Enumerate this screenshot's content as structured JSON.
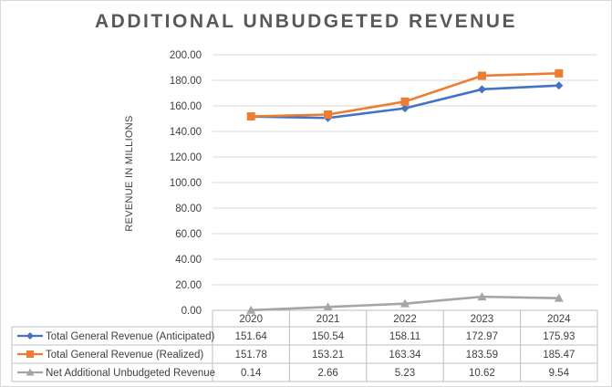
{
  "chart_data": {
    "type": "line",
    "title": "ADDITIONAL UNBUDGETED REVENUE",
    "ylabel": "REVENUE IN MILLIONS",
    "xlabel": "",
    "ylim": [
      0,
      200
    ],
    "y_ticks": [
      "0.00",
      "20.00",
      "40.00",
      "60.00",
      "80.00",
      "100.00",
      "120.00",
      "140.00",
      "160.00",
      "180.00",
      "200.00"
    ],
    "categories": [
      "2020",
      "2021",
      "2022",
      "2023",
      "2024"
    ],
    "grid": true,
    "legend": "data-table",
    "series": [
      {
        "name": "Total General Revenue (Anticipated)",
        "values": [
          151.64,
          150.54,
          158.11,
          172.97,
          175.93
        ],
        "labels": [
          "151.64",
          "150.54",
          "158.11",
          "172.97",
          "175.93"
        ],
        "color": "#4472c4",
        "marker": "diamond"
      },
      {
        "name": "Total General Revenue (Realized)",
        "values": [
          151.78,
          153.21,
          163.34,
          183.59,
          185.47
        ],
        "labels": [
          "151.78",
          "153.21",
          "163.34",
          "183.59",
          "185.47"
        ],
        "color": "#ed7d31",
        "marker": "square"
      },
      {
        "name": "Net Additional Unbudgeted Revenue",
        "values": [
          0.14,
          2.66,
          5.23,
          10.62,
          9.54
        ],
        "labels": [
          "0.14",
          "2.66",
          "5.23",
          "10.62",
          "9.54"
        ],
        "color": "#a5a5a5",
        "marker": "triangle"
      }
    ]
  }
}
